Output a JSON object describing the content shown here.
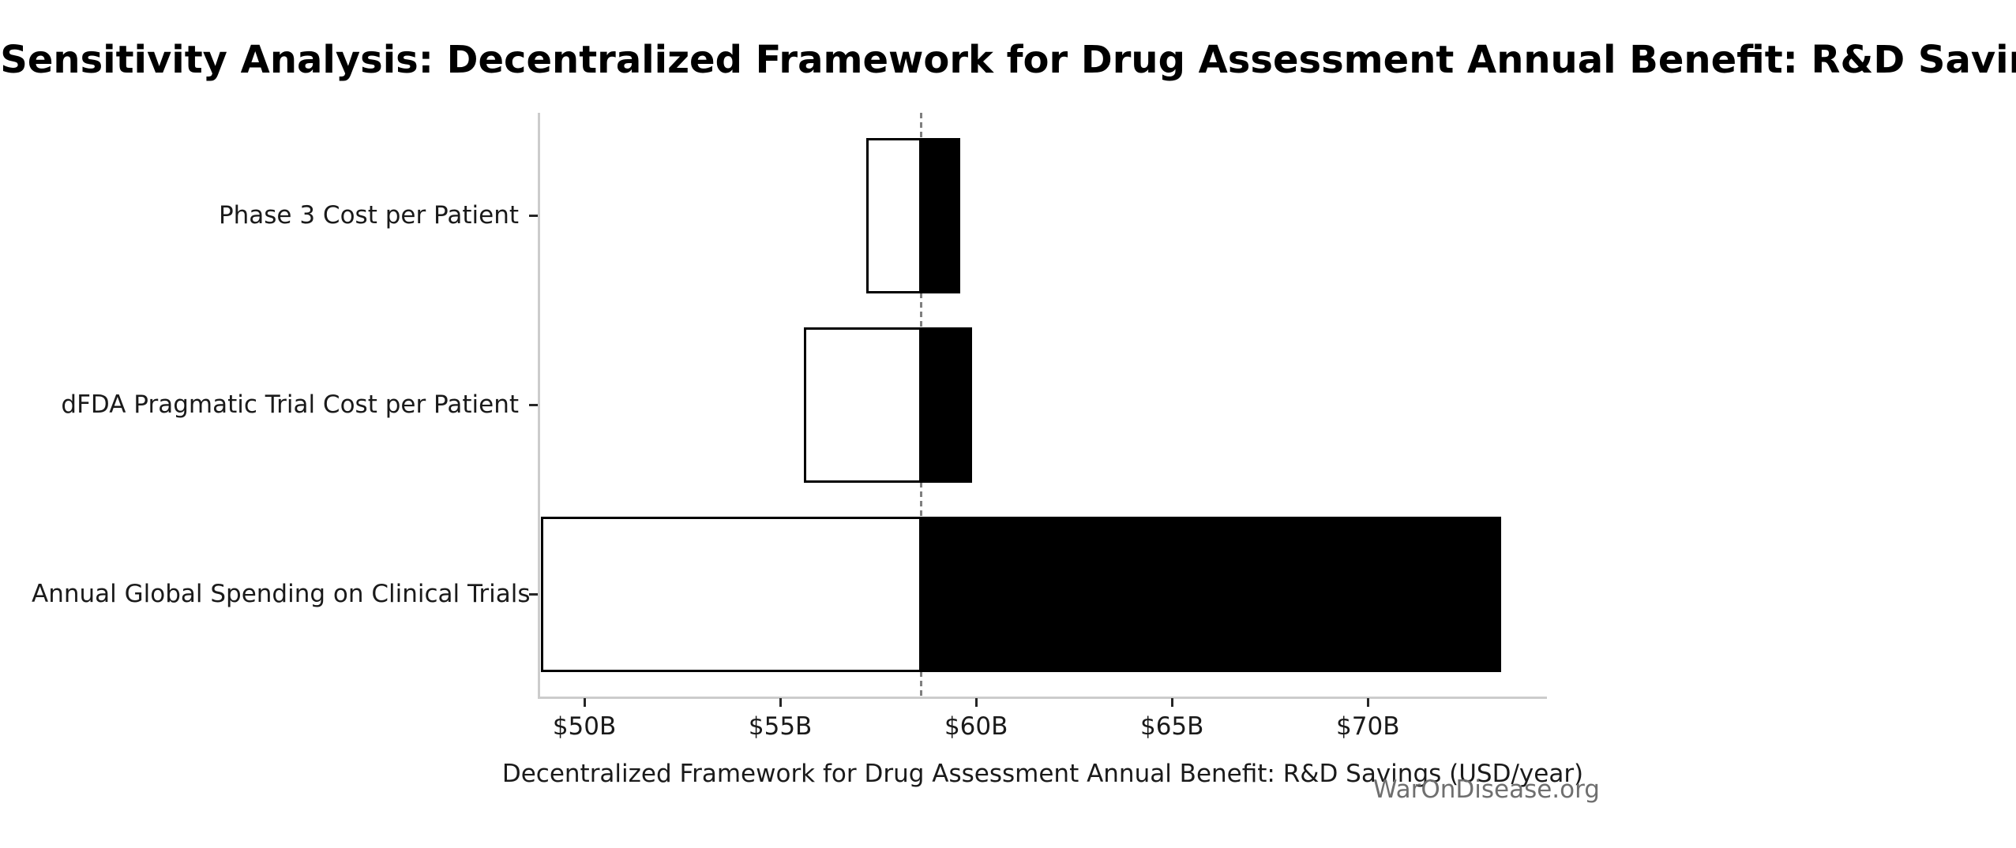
{
  "title": "Sensitivity Analysis: Decentralized Framework for Drug Assessment Annual Benefit: R&D Savings",
  "watermark": "WarOnDisease.org",
  "x_axis_label": "Decentralized Framework for Drug Assessment Annual Benefit: R&D Savings (USD/year)",
  "colors": {
    "background": "#ffffff",
    "bar_low_fill": "#ffffff",
    "bar_edge": "#000000",
    "bar_high_fill": "#000000",
    "baseline_line": "#7f7f7f",
    "spine": "#cccccc",
    "tick": "#262626",
    "text": "#1a1a1a",
    "watermark_text": "#6f6f6f"
  },
  "chart_data": {
    "type": "bar",
    "subtype": "tornado-sensitivity",
    "orientation": "horizontal",
    "title": "Sensitivity Analysis: Decentralized Framework for Drug Assessment Annual Benefit: R&D Savings",
    "xlabel": "Decentralized Framework for Drug Assessment Annual Benefit: R&D Savings (USD/year)",
    "ylabel": "",
    "unit": "USD billions per year",
    "baseline_value": 58.6,
    "categories": [
      "Phase 3 Cost per Patient",
      "dFDA Pragmatic Trial Cost per Patient",
      "Annual Global Spending on Clinical Trials"
    ],
    "series": [
      {
        "name": "low-end outcome (white, black edge)",
        "values": [
          57.2,
          55.6,
          48.9
        ]
      },
      {
        "name": "high-end outcome (solid black)",
        "values": [
          59.6,
          59.9,
          73.4
        ]
      }
    ],
    "xticks": [
      {
        "value": 50,
        "label": "$50B"
      },
      {
        "value": 55,
        "label": "$55B"
      },
      {
        "value": 60,
        "label": "$60B"
      },
      {
        "value": 65,
        "label": "$65B"
      },
      {
        "value": 70,
        "label": "$70B"
      }
    ],
    "xlim": [
      48.85,
      74.55
    ],
    "grid": false,
    "legend": "none",
    "baseline_line_style": "dashed gray vertical line at baseline_value"
  }
}
